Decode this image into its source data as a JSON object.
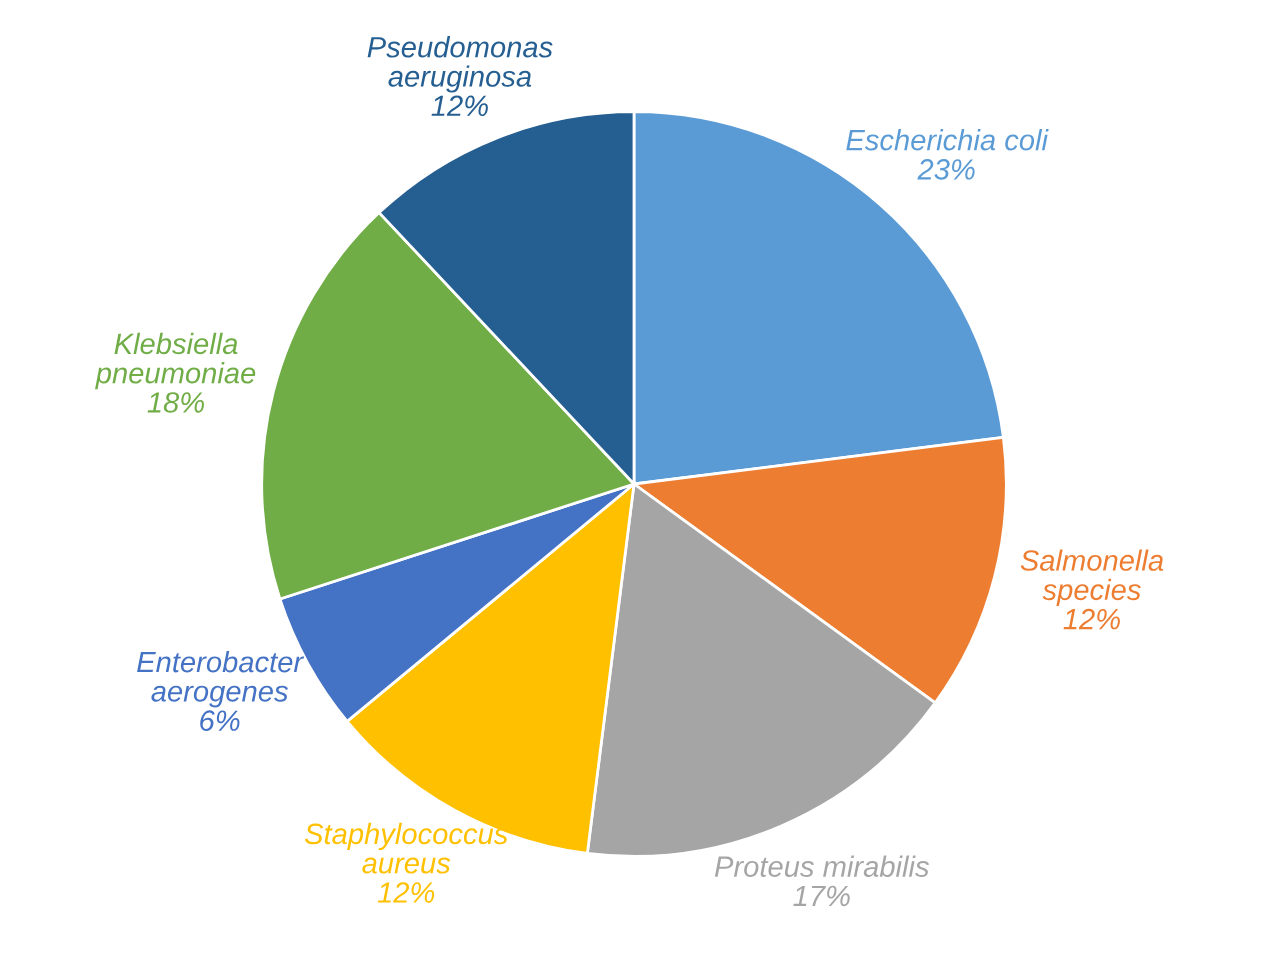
{
  "chart_data": {
    "type": "pie",
    "categories": [
      "Escherichia coli",
      "Salmonella species",
      "Proteus mirabilis",
      "Staphylococcus aureus",
      "Enterobacter aerogenes",
      "Klebsiella pneumoniae",
      "Pseudomonas aeruginosa"
    ],
    "values": [
      23,
      12,
      17,
      12,
      6,
      18,
      12
    ],
    "value_labels": [
      "23%",
      "12%",
      "17%",
      "12%",
      "6%",
      "18%",
      "12%"
    ],
    "colors": [
      "#5b9bd5",
      "#ed7d31",
      "#a5a5a5",
      "#ffc000",
      "#4472c4",
      "#70ad47",
      "#255e91"
    ]
  }
}
